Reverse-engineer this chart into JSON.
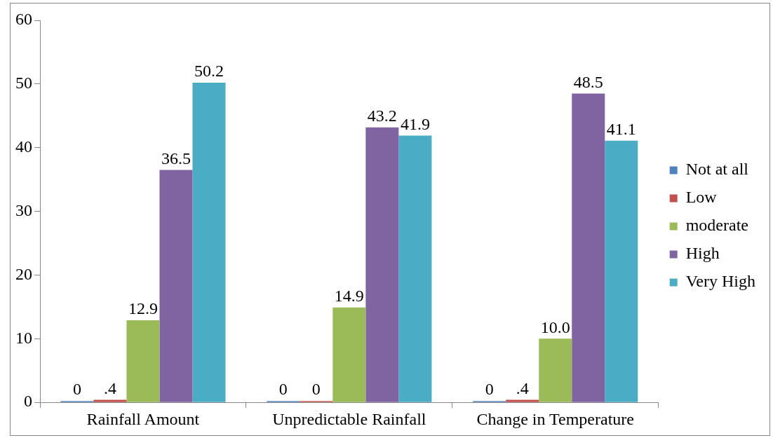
{
  "chart_data": {
    "type": "bar",
    "categories": [
      "Rainfall Amount",
      "Unpredictable Rainfall",
      "Change in Temperature"
    ],
    "series": [
      {
        "name": "Not at all",
        "color": "#4f81bd",
        "values": [
          0,
          0,
          0
        ],
        "value_labels": [
          "0",
          "0",
          "0"
        ]
      },
      {
        "name": "Low",
        "color": "#c0504d",
        "values": [
          0.4,
          0,
          0.4
        ],
        "value_labels": [
          ".4",
          "0",
          ".4"
        ]
      },
      {
        "name": "moderate",
        "color": "#9bbb59",
        "values": [
          12.9,
          14.9,
          10.0
        ],
        "value_labels": [
          "12.9",
          "14.9",
          "10.0"
        ]
      },
      {
        "name": "High",
        "color": "#8064a2",
        "values": [
          36.5,
          43.2,
          48.5
        ],
        "value_labels": [
          "36.5",
          "43.2",
          "48.5"
        ]
      },
      {
        "name": "Very High",
        "color": "#4bacc6",
        "values": [
          50.2,
          41.9,
          41.1
        ],
        "value_labels": [
          "50.2",
          "41.9",
          "41.1"
        ]
      }
    ],
    "ylim": [
      0,
      60
    ],
    "yticks": [
      0,
      10,
      20,
      30,
      40,
      50,
      60
    ],
    "grid": false,
    "legend": "right"
  }
}
